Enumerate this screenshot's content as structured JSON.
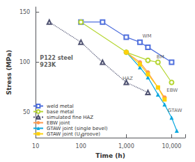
{
  "chart_data": {
    "type": "line",
    "xlabel": "Time (h)",
    "ylabel": "Stress (MPa)",
    "log": "x",
    "xlim": [
      10,
      20000
    ],
    "xticks": [
      10,
      100,
      {
        "value": 1000,
        "label": "1,000"
      },
      {
        "value": 10000,
        "label": "10,000"
      }
    ],
    "ylim": [
      25,
      155
    ],
    "yticks": [
      50,
      100,
      150
    ],
    "grid": false,
    "legend": "lower left",
    "annotations": [
      {
        "text": "P122 steel\n923K",
        "x": 12,
        "y": 108
      },
      {
        "text": "WM",
        "x": 2200,
        "y": 126
      },
      {
        "text": "BM",
        "x": 4500,
        "y": 105
      },
      {
        "text": "HAZ",
        "x": 800,
        "y": 84
      },
      {
        "text": "EBW",
        "x": 7500,
        "y": 72
      },
      {
        "text": "GTAW",
        "x": 8000,
        "y": 52
      }
    ],
    "series": [
      {
        "name": "weld metal",
        "x": [
          100,
          300,
          1000,
          2000,
          3000,
          10000
        ],
        "values": [
          140,
          140,
          125,
          120,
          115,
          100
        ],
        "marker": "open-square",
        "line_style": "solid"
      },
      {
        "name": "base metal",
        "x": [
          100,
          1000,
          3000,
          5000,
          10000
        ],
        "values": [
          140,
          110,
          102,
          100,
          80
        ],
        "marker": "open-circle",
        "line_style": "solid"
      },
      {
        "name": "simulated fine HAZ",
        "x": [
          20,
          100,
          300,
          1000,
          3000
        ],
        "values": [
          140,
          120,
          100,
          80,
          70
        ],
        "marker": "open-triangle",
        "line_style": "dotted"
      },
      {
        "name": "EBW joint",
        "x": [
          1000,
          2000,
          3000,
          5000,
          7000
        ],
        "values": [
          110,
          100,
          90,
          75,
          65
        ],
        "marker": "filled-circle",
        "line_style": "solid"
      },
      {
        "name": "GTAW joint (single bevel)",
        "x": [
          1000,
          2000,
          3000,
          5000,
          7000,
          10000,
          13000
        ],
        "values": [
          110,
          95,
          85,
          68,
          58,
          45,
          32
        ],
        "marker": "filled-triangle",
        "line_style": "solid"
      },
      {
        "name": "GTAW joint (U groove)",
        "x": [
          1000,
          2000,
          3000,
          5000,
          7000
        ],
        "values": [
          110,
          98,
          88,
          75,
          63
        ],
        "marker": "filled-square",
        "line_style": "solid"
      }
    ]
  }
}
